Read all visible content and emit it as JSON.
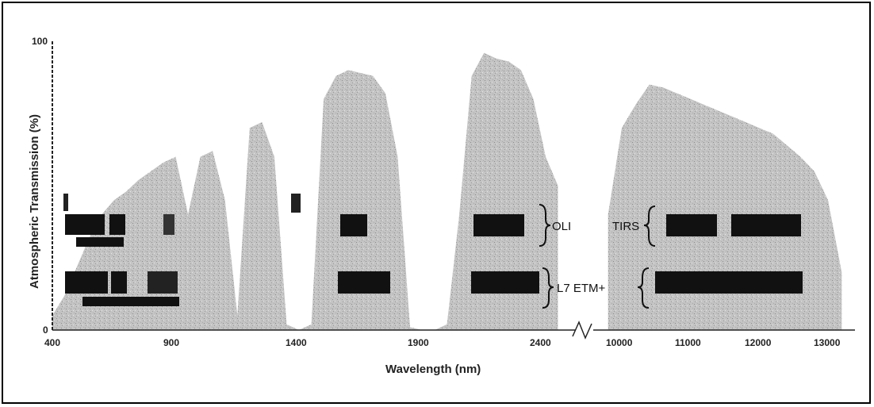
{
  "chart_data": {
    "type": "area",
    "title": "",
    "xlabel": "Wavelength (nm)",
    "ylabel": "Atmospheric Transmission (%)",
    "ylim": [
      0,
      100
    ],
    "y_ticks": [
      "0",
      "100"
    ],
    "axis_break": "between 2400 and 10000",
    "x_ticks_left": [
      "400",
      "900",
      "1400",
      "1900",
      "2400"
    ],
    "x_ticks_right": [
      "10000",
      "11000",
      "12000",
      "13000"
    ],
    "transmission_left": {
      "x": [
        400,
        450,
        500,
        550,
        600,
        650,
        700,
        750,
        800,
        850,
        900,
        950,
        1000,
        1050,
        1100,
        1150,
        1200,
        1250,
        1300,
        1350,
        1400,
        1450,
        1500,
        1550,
        1600,
        1650,
        1700,
        1750,
        1800,
        1850,
        1900,
        1950,
        2000,
        2050,
        2100,
        2150,
        2200,
        2250,
        2300,
        2350,
        2400,
        2450
      ],
      "y": [
        5,
        12,
        22,
        32,
        40,
        45,
        48,
        52,
        55,
        58,
        60,
        40,
        60,
        62,
        45,
        5,
        70,
        72,
        60,
        2,
        0,
        2,
        80,
        88,
        90,
        89,
        88,
        82,
        60,
        1,
        0,
        0,
        2,
        40,
        88,
        96,
        94,
        93,
        90,
        80,
        60,
        50
      ]
    },
    "transmission_right": {
      "x": [
        9800,
        10000,
        10200,
        10400,
        10600,
        10800,
        11000,
        11200,
        11400,
        11600,
        11800,
        12000,
        12200,
        12400,
        12600,
        12800,
        13000,
        13200
      ],
      "y": [
        40,
        70,
        78,
        85,
        84,
        82,
        80,
        78,
        76,
        74,
        72,
        70,
        68,
        64,
        60,
        55,
        45,
        20
      ]
    },
    "groups": [
      {
        "label": "OLI"
      },
      {
        "label": "L7 ETM+"
      },
      {
        "label": "TIRS"
      }
    ]
  }
}
